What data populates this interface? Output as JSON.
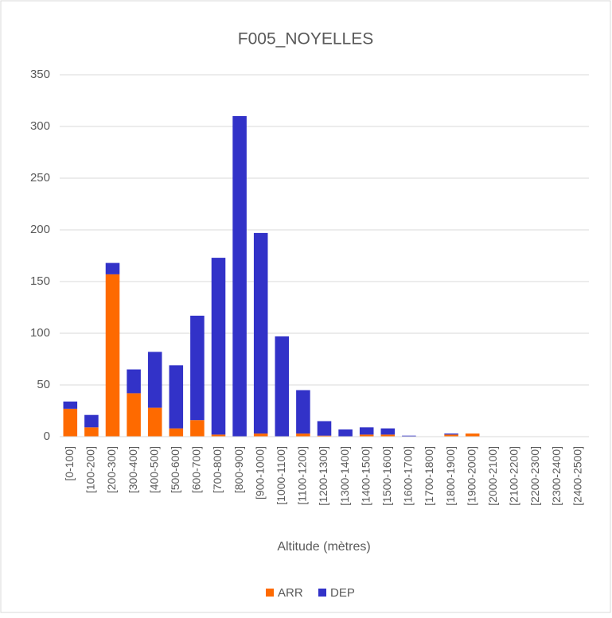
{
  "chart_data": {
    "type": "stacked_bar",
    "title": "F005_NOYELLES",
    "x_label": "Altitude (mètres)",
    "categories": [
      "[0-100]",
      "[100-200]",
      "[200-300]",
      "[300-400]",
      "[400-500]",
      "[500-600]",
      "[600-700]",
      "[700-800]",
      "[800-900]",
      "[900-1000]",
      "[1000-1100]",
      "[1100-1200]",
      "[1200-1300]",
      "[1300-1400]",
      "[1400-1500]",
      "[1500-1600]",
      "[1600-1700]",
      "[1700-1800]",
      "[1800-1900]",
      "[1900-2000]",
      "[2000-2100]",
      "[2100-2200]",
      "[2200-2300]",
      "[2300-2400]",
      "[2400-2500]"
    ],
    "series": [
      {
        "name": "ARR",
        "color": "#fe6a00",
        "values": [
          27,
          9,
          157,
          42,
          28,
          8,
          16,
          2,
          0,
          3,
          0,
          3,
          1,
          0,
          2,
          2,
          0,
          0,
          2,
          3,
          0,
          0,
          0,
          0,
          0
        ]
      },
      {
        "name": "DEP",
        "color": "#3232c8",
        "values": [
          7,
          12,
          11,
          23,
          54,
          61,
          101,
          171,
          310,
          194,
          97,
          42,
          14,
          7,
          7,
          6,
          1,
          0,
          1,
          0,
          0,
          0,
          0,
          0,
          0
        ]
      }
    ],
    "ylim": [
      0,
      350
    ],
    "yticks": [
      0,
      50,
      100,
      150,
      200,
      250,
      300,
      350
    ],
    "grid": true,
    "legend": "bottom"
  }
}
